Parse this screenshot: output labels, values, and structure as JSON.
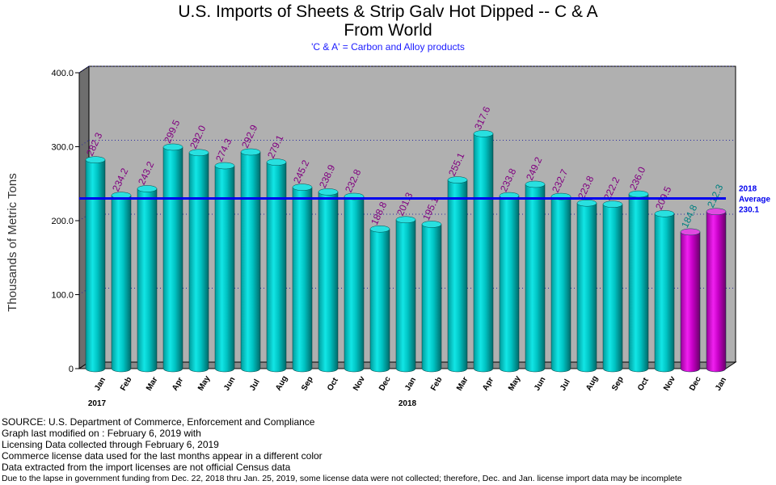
{
  "chart_data": {
    "type": "bar",
    "title_lines": [
      "U.S. Imports of Sheets & Strip Galv Hot Dipped -- C & A",
      "From World"
    ],
    "subtitle": "'C & A' = Carbon and Alloy products",
    "ylabel": "Thousands of Metric Tons",
    "ylim": [
      0,
      400
    ],
    "yticks": [
      "0",
      "100.0",
      "200.0",
      "300.0",
      "400.0"
    ],
    "grid": true,
    "categories": [
      "Jan",
      "Feb",
      "Mar",
      "Apr",
      "May",
      "Jun",
      "Jul",
      "Aug",
      "Sep",
      "Oct",
      "Nov",
      "Dec",
      "Jan",
      "Feb",
      "Mar",
      "Apr",
      "May",
      "Jun",
      "Jul",
      "Aug",
      "Sep",
      "Oct",
      "Nov",
      "Dec",
      "Jan"
    ],
    "values": [
      282.3,
      234.2,
      243.2,
      299.5,
      292.0,
      274.3,
      292.9,
      279.1,
      245.2,
      238.9,
      232.8,
      188.8,
      201.3,
      195.1,
      255.1,
      317.6,
      233.8,
      249.2,
      232.7,
      223.8,
      222.2,
      236.0,
      209.5,
      184.8,
      212.3
    ],
    "value_labels": [
      "282.3",
      "234.2",
      "243.2",
      "299.5",
      "292.0",
      "274.3",
      "292.9",
      "279.1",
      "245.2",
      "238.9",
      "232.8",
      "188.8",
      "201.3",
      "195.1",
      "255.1",
      "317.6",
      "233.8",
      "249.2",
      "232.7",
      "223.8",
      "222.2",
      "236.0",
      "209.5",
      "184.8",
      "212.3"
    ],
    "license_data_flags": [
      false,
      false,
      false,
      false,
      false,
      false,
      false,
      false,
      false,
      false,
      false,
      false,
      false,
      false,
      false,
      false,
      false,
      false,
      false,
      false,
      false,
      false,
      false,
      true,
      true
    ],
    "year_labels": [
      {
        "index": 0,
        "label": "2017"
      },
      {
        "index": 12,
        "label": "2018"
      }
    ],
    "average": {
      "value": 230.1,
      "label_lines": [
        "2018",
        "Average",
        "230.1"
      ]
    },
    "colors": {
      "census_bar": "#00b5b5",
      "license_bar": "#c000c0",
      "value_label": "#800080",
      "license_value_label": "#008080",
      "average_line": "#0000ee",
      "plot_bg": "#b0b0b0",
      "grid": "#2a2aa0"
    }
  },
  "notes": [
    "SOURCE: U.S. Department of Commerce, Enforcement and Compliance",
    "Graph last modified on : February 6, 2019   with",
    "Licensing Data collected through February 6, 2019",
    "Commerce license data used for the last months appear in a different color",
    "Data extracted from the import licenses are not official Census data",
    "Due to the lapse in government funding from Dec. 22, 2018 thru Jan. 25, 2019, some license data were not collected; therefore, Dec. and Jan. license import data may be incomplete"
  ]
}
